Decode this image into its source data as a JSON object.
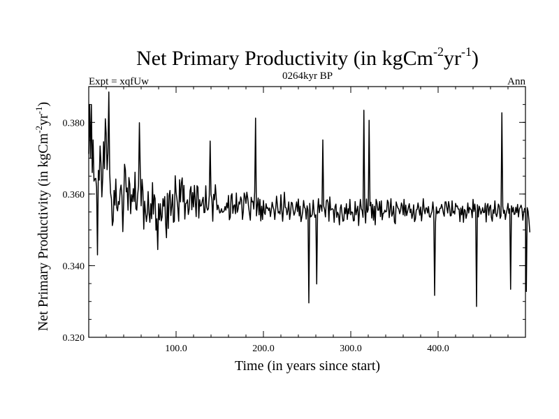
{
  "chart_data": {
    "type": "line",
    "title_main": "Net Primary Productivity (in kgCm",
    "title_sup1": "-2",
    "title_mid": "yr",
    "title_sup2": "-1",
    "title_end": ")",
    "left_label": "Expt = xqfUw",
    "center_label": "0264kyr BP",
    "right_label": "Ann",
    "xlabel": "Time (in years since start)",
    "ylabel_main": "Net Primary Productivity (in kgCm",
    "ylabel_sup1": "-2",
    "ylabel_mid": "yr",
    "ylabel_sup2": "-1",
    "ylabel_end": ")",
    "xlim": [
      0,
      500
    ],
    "ylim": [
      0.32,
      0.39
    ],
    "x_major_ticks": [
      100,
      200,
      300,
      400
    ],
    "x_tick_labels": [
      "100.0",
      "200.0",
      "300.0",
      "400.0"
    ],
    "x_minor_step": 20,
    "y_major_ticks": [
      0.32,
      0.34,
      0.36,
      0.38
    ],
    "y_tick_labels": [
      "0.320",
      "0.340",
      "0.360",
      "0.380"
    ],
    "y_minor_step": 0.005,
    "series": [
      {
        "name": "Net Primary Productivity",
        "x_start": 0,
        "x_step": 1,
        "values": [
          0.3712,
          0.385,
          0.37,
          0.385,
          0.366,
          0.3751,
          0.3636,
          0.3642,
          0.3644,
          0.3619,
          0.343,
          0.3666,
          0.3639,
          0.3734,
          0.3686,
          0.3592,
          0.3645,
          0.3746,
          0.3671,
          0.381,
          0.3767,
          0.3668,
          0.3713,
          0.3885,
          0.3658,
          0.3603,
          0.3586,
          0.3512,
          0.3525,
          0.361,
          0.3569,
          0.3642,
          0.3562,
          0.3553,
          0.3579,
          0.3571,
          0.3611,
          0.3625,
          0.3595,
          0.3495,
          0.3575,
          0.3683,
          0.3667,
          0.3606,
          0.3617,
          0.3555,
          0.3646,
          0.3627,
          0.3545,
          0.3598,
          0.3579,
          0.3615,
          0.3579,
          0.3661,
          0.3559,
          0.3555,
          0.3597,
          0.3623,
          0.3799,
          0.3665,
          0.3567,
          0.3641,
          0.3609,
          0.3502,
          0.358,
          0.3549,
          0.3523,
          0.3544,
          0.3607,
          0.3548,
          0.3521,
          0.3573,
          0.3531,
          0.3632,
          0.3544,
          0.3598,
          0.3587,
          0.3499,
          0.3531,
          0.3445,
          0.3573,
          0.3528,
          0.3573,
          0.3525,
          0.3536,
          0.3587,
          0.3566,
          0.3593,
          0.3519,
          0.3478,
          0.3602,
          0.3504,
          0.3595,
          0.361,
          0.354,
          0.3566,
          0.3599,
          0.3521,
          0.3524,
          0.3651,
          0.3605,
          0.3586,
          0.3561,
          0.3524,
          0.364,
          0.3578,
          0.363,
          0.3645,
          0.3578,
          0.3624,
          0.353,
          0.3573,
          0.3575,
          0.3584,
          0.3543,
          0.3558,
          0.3609,
          0.3621,
          0.3556,
          0.3604,
          0.3564,
          0.3624,
          0.358,
          0.3537,
          0.3623,
          0.3619,
          0.3533,
          0.3584,
          0.3566,
          0.3568,
          0.3581,
          0.3591,
          0.3548,
          0.3549,
          0.3623,
          0.3564,
          0.3555,
          0.3559,
          0.3595,
          0.3748,
          0.3599,
          0.3585,
          0.3524,
          0.3599,
          0.3584,
          0.3626,
          0.3589,
          0.3556,
          0.3569,
          0.3559,
          0.3547,
          0.355,
          0.3559,
          0.3549,
          0.355,
          0.3553,
          0.3565,
          0.3555,
          0.3575,
          0.3561,
          0.3596,
          0.3528,
          0.3535,
          0.3595,
          0.3601,
          0.3546,
          0.3567,
          0.357,
          0.3545,
          0.3603,
          0.3549,
          0.3558,
          0.3578,
          0.3572,
          0.3592,
          0.3583,
          0.3529,
          0.3552,
          0.3603,
          0.3593,
          0.3574,
          0.3605,
          0.3589,
          0.3565,
          0.3546,
          0.3527,
          0.3591,
          0.3578,
          0.358,
          0.3558,
          0.3606,
          0.3812,
          0.3539,
          0.3567,
          0.3589,
          0.3542,
          0.3585,
          0.3525,
          0.3566,
          0.3529,
          0.3582,
          0.3548,
          0.3543,
          0.3573,
          0.356,
          0.3562,
          0.3554,
          0.3561,
          0.3537,
          0.3555,
          0.3577,
          0.3564,
          0.3556,
          0.3529,
          0.3557,
          0.3594,
          0.3569,
          0.3547,
          0.3551,
          0.3544,
          0.3598,
          0.3556,
          0.3524,
          0.356,
          0.3605,
          0.3563,
          0.3561,
          0.3542,
          0.3555,
          0.3578,
          0.3529,
          0.3547,
          0.3577,
          0.3575,
          0.3555,
          0.3541,
          0.3548,
          0.3563,
          0.3578,
          0.3551,
          0.3586,
          0.3539,
          0.3566,
          0.3523,
          0.3536,
          0.3551,
          0.3582,
          0.3563,
          0.3559,
          0.353,
          0.3567,
          0.3555,
          0.3296,
          0.3574,
          0.3536,
          0.3538,
          0.3544,
          0.3583,
          0.3549,
          0.3535,
          0.3542,
          0.3349,
          0.3554,
          0.3587,
          0.3548,
          0.357,
          0.3567,
          0.3552,
          0.3751,
          0.3566,
          0.3557,
          0.3536,
          0.3581,
          0.3584,
          0.3576,
          0.3524,
          0.3592,
          0.3555,
          0.3558,
          0.3559,
          0.3556,
          0.3521,
          0.3565,
          0.3572,
          0.3535,
          0.3549,
          0.3542,
          0.3514,
          0.356,
          0.357,
          0.3545,
          0.3524,
          0.3526,
          0.3562,
          0.3545,
          0.3573,
          0.3529,
          0.3559,
          0.3545,
          0.3585,
          0.3542,
          0.355,
          0.3549,
          0.3525,
          0.3526,
          0.3579,
          0.3542,
          0.3555,
          0.3566,
          0.3512,
          0.3555,
          0.3585,
          0.3559,
          0.3554,
          0.3535,
          0.3834,
          0.3555,
          0.3519,
          0.3586,
          0.3549,
          0.3557,
          0.3806,
          0.3567,
          0.3577,
          0.3533,
          0.3571,
          0.3527,
          0.3566,
          0.3514,
          0.3585,
          0.3575,
          0.3555,
          0.3555,
          0.3579,
          0.3537,
          0.3581,
          0.3528,
          0.3546,
          0.3547,
          0.3555,
          0.355,
          0.3552,
          0.3583,
          0.3576,
          0.3534,
          0.3557,
          0.3587,
          0.3538,
          0.3545,
          0.3566,
          0.3522,
          0.3517,
          0.3578,
          0.3568,
          0.3561,
          0.3558,
          0.3545,
          0.3554,
          0.3575,
          0.3567,
          0.3542,
          0.3585,
          0.3539,
          0.3569,
          0.354,
          0.3551,
          0.3563,
          0.3573,
          0.3548,
          0.3558,
          0.3532,
          0.3544,
          0.357,
          0.3523,
          0.353,
          0.3556,
          0.3557,
          0.3575,
          0.3559,
          0.3541,
          0.3564,
          0.3525,
          0.3551,
          0.3587,
          0.3557,
          0.3545,
          0.3561,
          0.3561,
          0.3547,
          0.3565,
          0.3537,
          0.3535,
          0.3545,
          0.3551,
          0.3578,
          0.3551,
          0.3317,
          0.3521,
          0.3564,
          0.3545,
          0.3552,
          0.3547,
          0.356,
          0.356,
          0.3571,
          0.3561,
          0.3547,
          0.3538,
          0.3578,
          0.3578,
          0.3562,
          0.3547,
          0.3579,
          0.3564,
          0.3539,
          0.354,
          0.3581,
          0.3547,
          0.3552,
          0.3544,
          0.3574,
          0.3565,
          0.3567,
          0.3558,
          0.3558,
          0.3523,
          0.3561,
          0.3542,
          0.3566,
          0.3521,
          0.3557,
          0.3554,
          0.3532,
          0.3544,
          0.3575,
          0.3547,
          0.3563,
          0.3558,
          0.3556,
          0.3534,
          0.3585,
          0.3551,
          0.3572,
          0.3549,
          0.3286,
          0.357,
          0.3536,
          0.3566,
          0.3558,
          0.3544,
          0.3551,
          0.3562,
          0.3548,
          0.3549,
          0.3574,
          0.3522,
          0.3566,
          0.3573,
          0.3541,
          0.3563,
          0.3569,
          0.3535,
          0.3524,
          0.3556,
          0.3546,
          0.3581,
          0.3545,
          0.3537,
          0.3549,
          0.3572,
          0.3566,
          0.3532,
          0.3539,
          0.3827,
          0.3566,
          0.3546,
          0.3555,
          0.3529,
          0.3546,
          0.3557,
          0.3574,
          0.3546,
          0.3559,
          0.3334,
          0.3567,
          0.355,
          0.3563,
          0.3543,
          0.3544,
          0.3563,
          0.3548,
          0.3571,
          0.3536,
          0.3558,
          0.3563,
          0.3569,
          0.3559,
          0.3527,
          0.3548,
          0.356,
          0.3556,
          0.3328,
          0.3562,
          0.3552,
          0.3526,
          0.3493
        ]
      }
    ]
  }
}
